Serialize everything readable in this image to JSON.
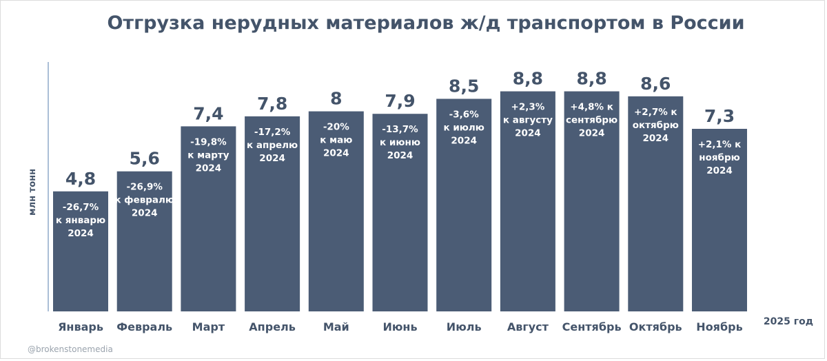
{
  "chart_data": {
    "type": "bar",
    "title": "Отгрузка нерудных материалов ж/д транспортом в России",
    "ylabel": "млн тонн",
    "xlabel": "2025 год",
    "categories": [
      "Январь",
      "Февраль",
      "Март",
      "Апрель",
      "Май",
      "Июнь",
      "Июль",
      "Август",
      "Сентябрь",
      "Октябрь",
      "Ноябрь"
    ],
    "values": [
      4.8,
      5.6,
      7.4,
      7.8,
      8,
      7.9,
      8.5,
      8.8,
      8.8,
      8.6,
      7.3
    ],
    "value_labels": [
      "4,8",
      "5,6",
      "7,4",
      "7,8",
      "8",
      "7,9",
      "8,5",
      "8,8",
      "8,8",
      "8,6",
      "7,3"
    ],
    "annotations": [
      [
        "-26,7%",
        "к январю",
        "2024"
      ],
      [
        "-26,9%",
        "к февралю",
        "2024"
      ],
      [
        "-19,8%",
        "к марту",
        "2024"
      ],
      [
        "-17,2%",
        "к апрелю",
        "2024"
      ],
      [
        "-20%",
        "к маю",
        "2024"
      ],
      [
        "-13,7%",
        "к июню",
        "2024"
      ],
      [
        "-3,6%",
        "к июлю",
        "2024"
      ],
      [
        "+2,3%",
        "к августу",
        "2024"
      ],
      [
        "+4,8% к",
        "сентябрю",
        "2024"
      ],
      [
        "+2,7% к",
        "октябрю",
        "2024"
      ],
      [
        "+2,1% к",
        "ноябрю",
        "2024"
      ]
    ],
    "colors": {
      "bar": "#4b5c75",
      "text": "#44546a",
      "annotation": "#ffffff",
      "axis": "#8fa9c9"
    }
  },
  "footer": {
    "credit": "@brokenstonemedia"
  }
}
